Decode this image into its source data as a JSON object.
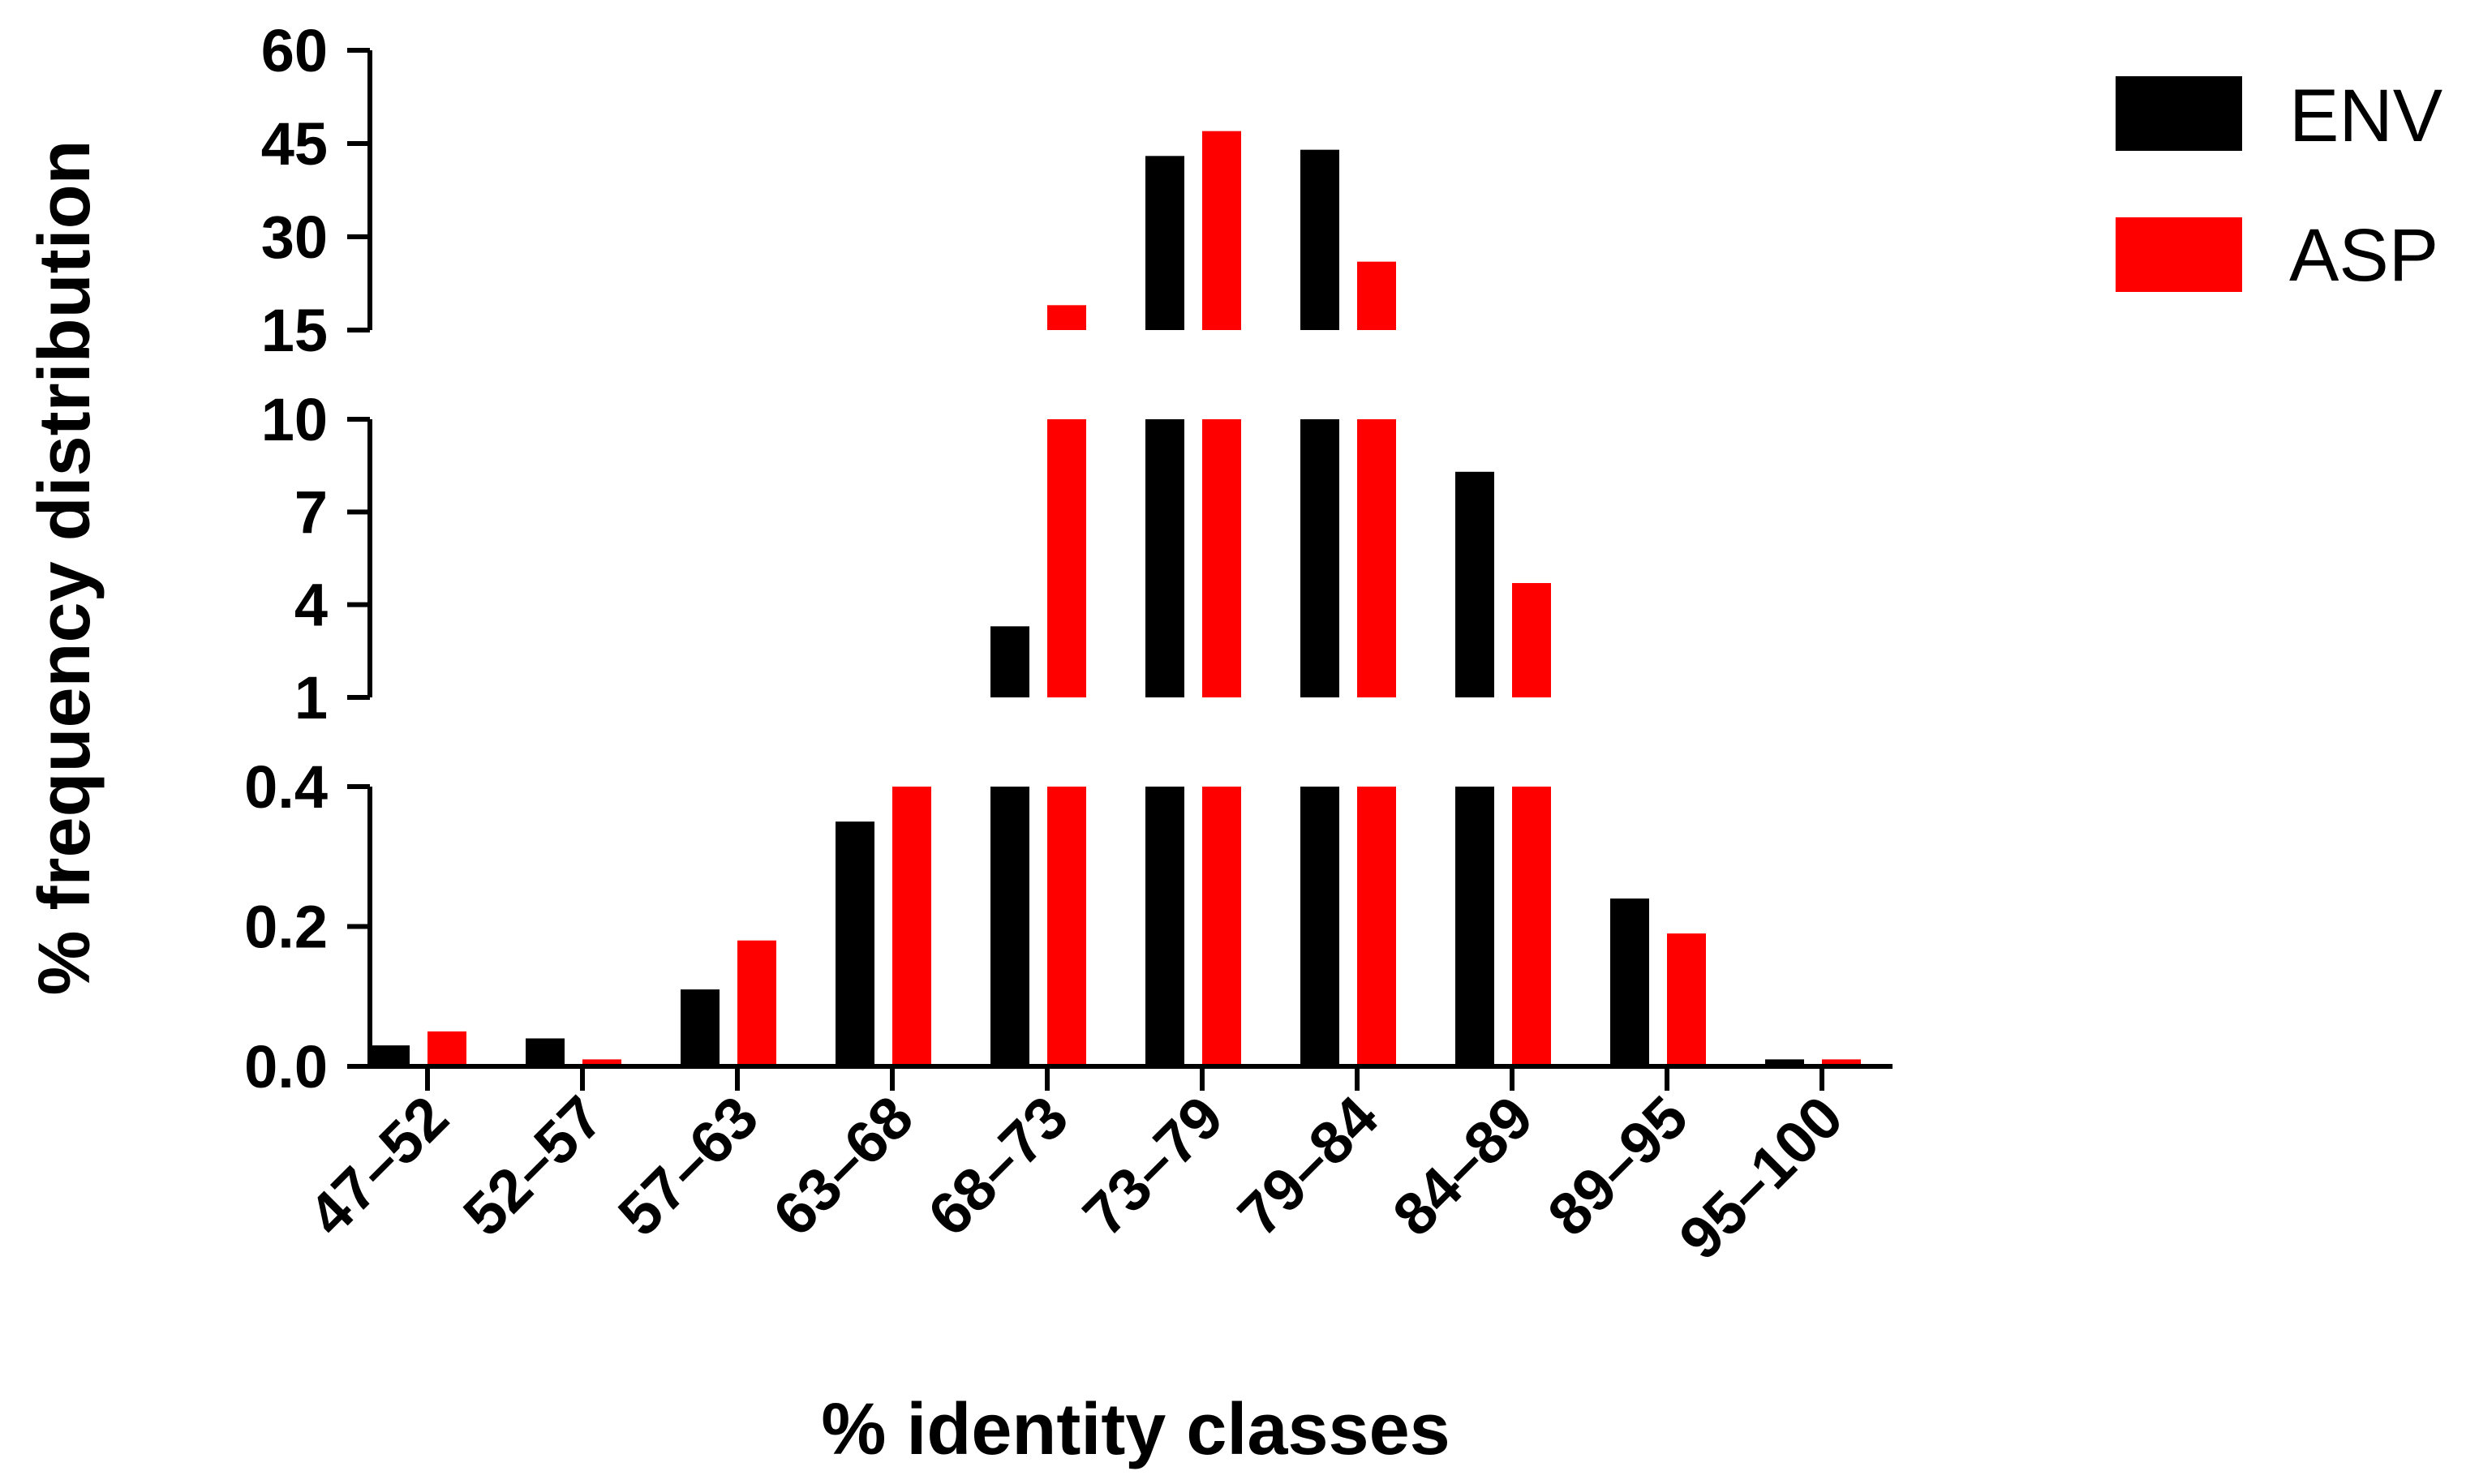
{
  "chart_data": {
    "type": "bar",
    "xlabel": "% identity classes",
    "ylabel": "% frequency distribution",
    "categories": [
      "47–52",
      "52–57",
      "57–63",
      "63–68",
      "68–73",
      "73–79",
      "79–84",
      "84–89",
      "89–95",
      "95–100"
    ],
    "series": [
      {
        "name": "ENV",
        "color": "#000000",
        "values": [
          0.03,
          0.04,
          0.11,
          0.35,
          3.3,
          43,
          44,
          8.3,
          0.24,
          0.01
        ]
      },
      {
        "name": "ASP",
        "color": "#ff0000",
        "values": [
          0.05,
          0.01,
          0.18,
          1.0,
          19,
          47,
          26,
          4.7,
          0.19,
          0.01
        ]
      }
    ],
    "y_axis_segments": [
      {
        "range": [
          0,
          0.4
        ],
        "ticks": [
          "0.0",
          "0.2",
          "0.4"
        ]
      },
      {
        "range": [
          1,
          10
        ],
        "ticks": [
          "1",
          "4",
          "7",
          "10"
        ]
      },
      {
        "range": [
          15,
          60
        ],
        "ticks": [
          "15",
          "30",
          "45",
          "60"
        ]
      }
    ],
    "legend": {
      "position": "top-right",
      "entries": [
        "ENV",
        "ASP"
      ]
    }
  }
}
